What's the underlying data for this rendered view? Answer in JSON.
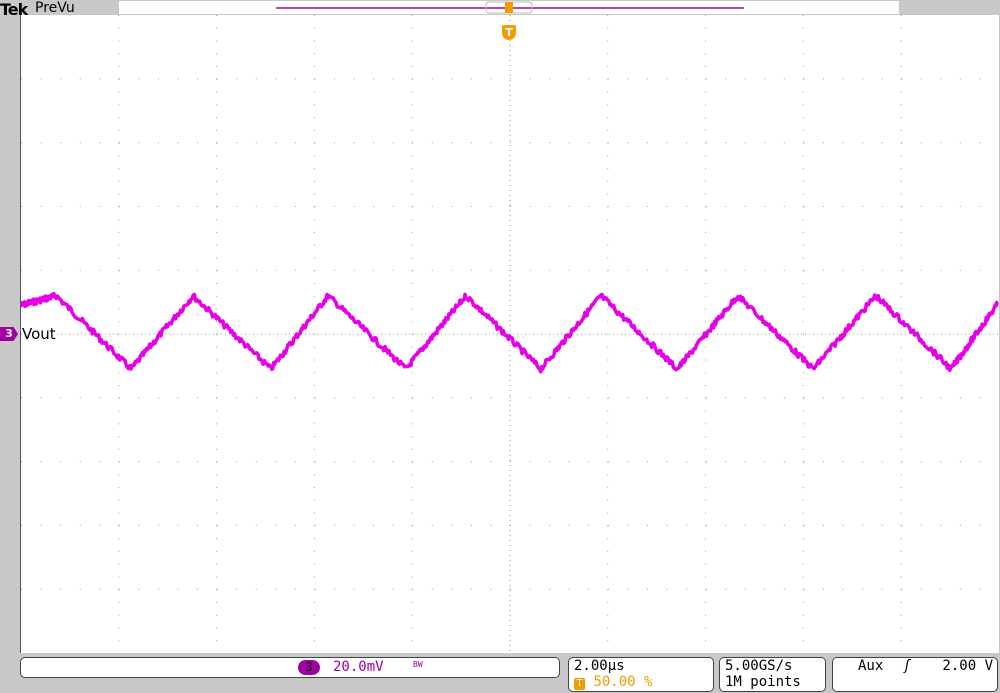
{
  "header": {
    "brand": "Tek",
    "mode": "PreVu"
  },
  "channel": {
    "number": "3",
    "label": "Vout",
    "scale": "20.0mV",
    "bandwidth_icon": "BW",
    "color": "#e600e6",
    "badge_color": "#a000a0"
  },
  "horizontal": {
    "scale": "2.00µs",
    "trigger_icon": "T",
    "trigger_position": "50.00 %"
  },
  "acquisition": {
    "sample_rate": "5.00GS/s",
    "record_length": "1M points"
  },
  "trigger": {
    "source": "Aux",
    "slope_icon": "rising-edge",
    "slope_glyph": "ʃ",
    "level": "2.00 V",
    "marker": "T",
    "color": "#f39c00"
  },
  "chart_data": {
    "type": "line",
    "grid": true,
    "x_divisions": 10,
    "y_divisions": 10,
    "xlim_us": [
      -10,
      10
    ],
    "ylim_mV": [
      -100,
      100
    ],
    "series": [
      {
        "name": "Vout",
        "waveform": "triangle (noisy)",
        "points": [
          [
            -10,
            9
          ],
          [
            -9.28,
            12
          ],
          [
            -7.75,
            -11
          ],
          [
            -6.48,
            12
          ],
          [
            -4.89,
            -11
          ],
          [
            -3.72,
            12
          ],
          [
            -2.13,
            -11
          ],
          [
            -0.9,
            12
          ],
          [
            0.63,
            -11
          ],
          [
            1.86,
            12
          ],
          [
            3.42,
            -11
          ],
          [
            4.66,
            12
          ],
          [
            6.2,
            -11
          ],
          [
            7.48,
            12
          ],
          [
            9.02,
            -11
          ],
          [
            10,
            10
          ]
        ]
      }
    ]
  }
}
